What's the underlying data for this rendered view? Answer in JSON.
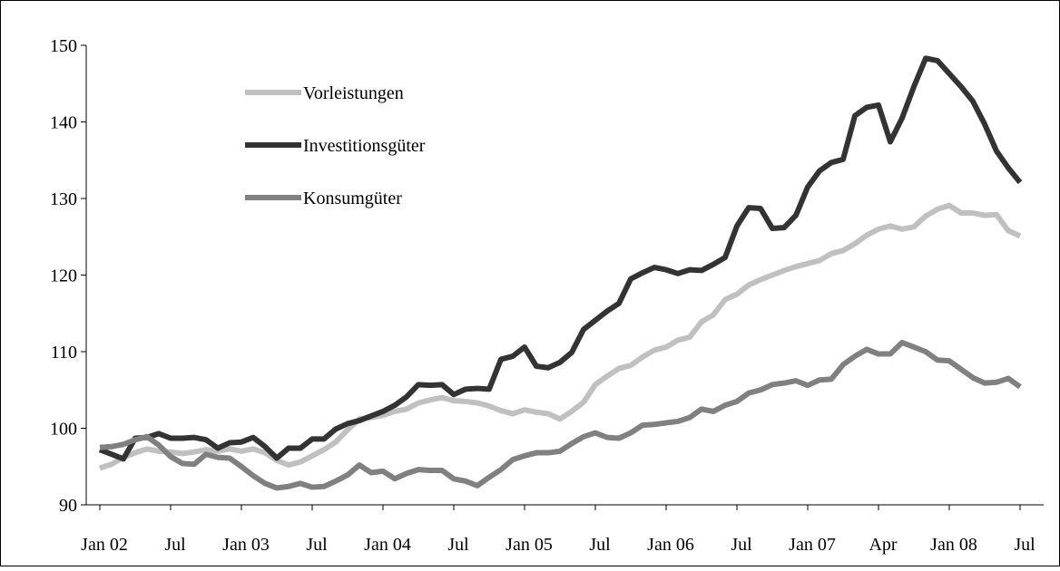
{
  "chart_data": {
    "type": "line",
    "x": [
      "Jan 02",
      null,
      null,
      null,
      null,
      null,
      "Jul",
      null,
      null,
      null,
      null,
      null,
      "Jan 03",
      null,
      null,
      null,
      null,
      null,
      "Jul",
      null,
      null,
      null,
      null,
      null,
      "Jan 04",
      null,
      null,
      null,
      null,
      null,
      "Jul",
      null,
      null,
      null,
      null,
      null,
      "Jan 05",
      null,
      null,
      null,
      null,
      null,
      "Jul",
      null,
      null,
      null,
      null,
      null,
      "Jan 06",
      null,
      null,
      null,
      null,
      null,
      "Jul",
      null,
      null,
      null,
      null,
      null,
      "Jan 07",
      null,
      null,
      null,
      null,
      null,
      "Apr",
      null,
      null,
      null,
      null,
      null,
      "Jan 08",
      null,
      null,
      null,
      null,
      null,
      "Jul"
    ],
    "series": [
      {
        "name": "Vorleistungen",
        "color": "#c0c0c0",
        "values": [
          94.8,
          95.3,
          96.2,
          96.8,
          97.3,
          97.0,
          96.9,
          96.7,
          96.9,
          97.2,
          97.0,
          97.3,
          97.0,
          97.3,
          96.8,
          95.8,
          95.2,
          95.6,
          96.4,
          97.2,
          98.2,
          99.8,
          101.2,
          101.4,
          101.7,
          102.2,
          102.5,
          103.3,
          103.7,
          104.0,
          103.6,
          103.5,
          103.3,
          102.9,
          102.3,
          101.9,
          102.4,
          102.1,
          101.9,
          101.2,
          102.2,
          103.4,
          105.7,
          106.8,
          107.8,
          108.2,
          109.3,
          110.2,
          110.6,
          111.5,
          111.9,
          113.9,
          114.8,
          116.8,
          117.5,
          118.7,
          119.4,
          120.0,
          120.6,
          121.1,
          121.5,
          121.9,
          122.8,
          123.2,
          124.1,
          125.2,
          126.0,
          126.4,
          126.0,
          126.3,
          127.7,
          128.6,
          129.1,
          128.1,
          128.1,
          127.8,
          127.9,
          125.8,
          125.1
        ]
      },
      {
        "name": "Investitionsgüter",
        "color": "#333333",
        "values": [
          97.2,
          96.6,
          96.0,
          98.7,
          98.8,
          99.3,
          98.7,
          98.7,
          98.8,
          98.5,
          97.4,
          98.1,
          98.2,
          98.8,
          97.6,
          96.1,
          97.4,
          97.4,
          98.6,
          98.6,
          99.9,
          100.6,
          101.0,
          101.6,
          102.2,
          103.0,
          104.1,
          105.7,
          105.6,
          105.7,
          104.4,
          105.1,
          105.2,
          105.1,
          109.0,
          109.4,
          110.6,
          108.1,
          107.9,
          108.6,
          109.9,
          112.9,
          114.1,
          115.3,
          116.3,
          119.5,
          120.3,
          121.0,
          120.7,
          120.2,
          120.7,
          120.6,
          121.4,
          122.3,
          126.4,
          128.8,
          128.7,
          126.1,
          126.2,
          127.8,
          131.5,
          133.6,
          134.7,
          135.1,
          140.8,
          141.9,
          142.2,
          137.4,
          140.5,
          144.6,
          148.3,
          148.0,
          146.3,
          144.6,
          142.7,
          139.7,
          136.2,
          134.0,
          132.1
        ]
      },
      {
        "name": "Konsumgüter",
        "color": "#808080",
        "values": [
          97.5,
          97.6,
          97.9,
          98.5,
          98.9,
          97.8,
          96.3,
          95.4,
          95.3,
          96.6,
          96.2,
          96.1,
          95.0,
          93.8,
          92.8,
          92.2,
          92.4,
          92.8,
          92.3,
          92.4,
          93.1,
          93.9,
          95.2,
          94.2,
          94.4,
          93.4,
          94.1,
          94.6,
          94.5,
          94.5,
          93.4,
          93.1,
          92.5,
          93.6,
          94.6,
          95.9,
          96.4,
          96.8,
          96.8,
          97.0,
          98.0,
          98.9,
          99.4,
          98.8,
          98.7,
          99.4,
          100.4,
          100.5,
          100.7,
          100.9,
          101.4,
          102.5,
          102.2,
          103.0,
          103.5,
          104.6,
          105.0,
          105.7,
          105.9,
          106.2,
          105.6,
          106.3,
          106.4,
          108.3,
          109.4,
          110.3,
          109.7,
          109.7,
          111.2,
          110.6,
          110.0,
          108.9,
          108.8,
          107.7,
          106.6,
          105.9,
          106.0,
          106.5,
          105.4
        ]
      }
    ],
    "ylim": [
      90,
      150
    ],
    "yticks": [
      90,
      100,
      110,
      120,
      130,
      140,
      150
    ],
    "grid": false,
    "legend": "upper-left"
  }
}
